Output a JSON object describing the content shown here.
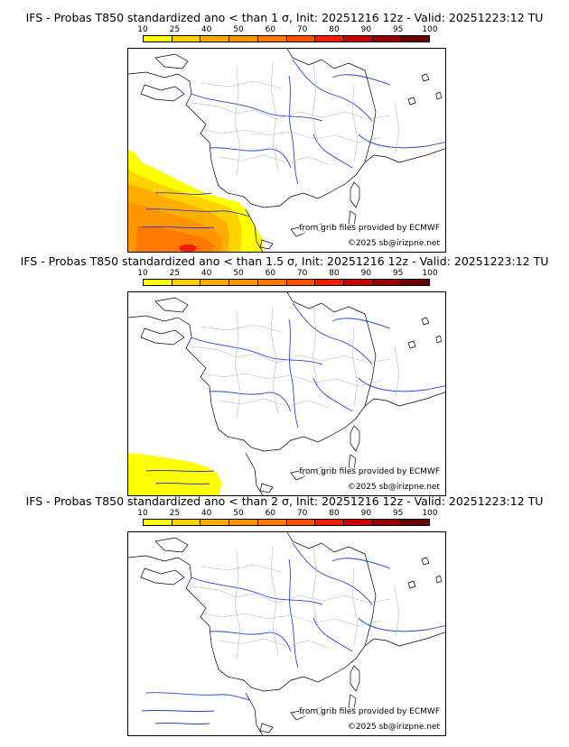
{
  "colorbar": {
    "levels": [
      "10",
      "25",
      "40",
      "50",
      "60",
      "70",
      "80",
      "90",
      "95",
      "100"
    ],
    "colors": [
      "#ffff00",
      "#ffd200",
      "#ffae00",
      "#ff9600",
      "#ff7800",
      "#ff5000",
      "#f01e00",
      "#c80000",
      "#960000",
      "#640000"
    ]
  },
  "credits": {
    "data_source": "from grib files provided by ECMWF",
    "copyright": "©2025 sb@irizpne.net"
  },
  "panels": [
    {
      "title": "IFS - Probas T850  standardized ano < than 1 σ, Init: 20251216 12z - Valid: 20251223:12 TU"
    },
    {
      "title": "IFS - Probas T850  standardized ano < than 1.5 σ, Init: 20251216 12z - Valid: 20251223:12 TU"
    },
    {
      "title": "IFS - Probas T850  standardized ano < than 2 σ, Init: 20251216 12z - Valid: 20251223:12 TU"
    }
  ]
}
